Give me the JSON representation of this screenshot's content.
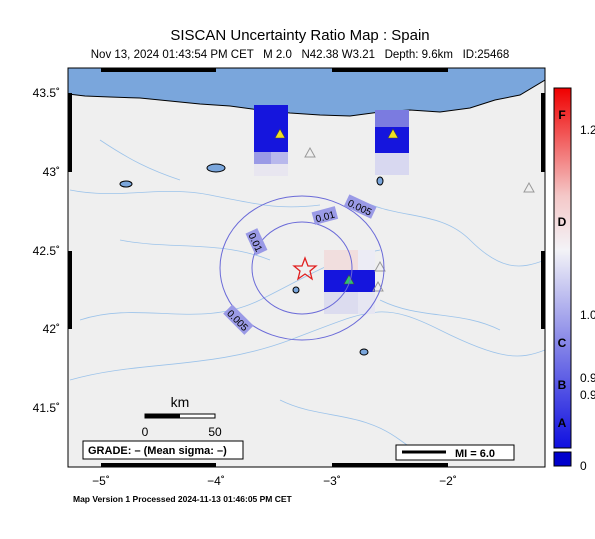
{
  "header": {
    "title": "SISCAN Uncertainty Ratio Map : Spain",
    "subtitle": "Nov 13, 2024 01:43:54 PM CET   M 2.0   N42.38 W3.21   Depth: 9.6km   ID:25468"
  },
  "axes": {
    "lat_labels": [
      "43.5˚",
      "43˚",
      "42.5˚",
      "42˚",
      "41.5˚"
    ],
    "lon_labels": [
      "−5˚",
      "−4˚",
      "−3˚",
      "−2˚"
    ]
  },
  "colorbar": {
    "grades": [
      "F",
      "D",
      "C",
      "B",
      "A"
    ],
    "tick_labels": [
      "1.2",
      "1.0",
      "0.9",
      "0.9",
      "0"
    ]
  },
  "contour_labels": [
    "0.005",
    "0.01",
    "0.01",
    "0.005"
  ],
  "scale_bar": {
    "unit": "km",
    "labels": [
      "0",
      "50"
    ]
  },
  "legend": {
    "grade": "GRADE: – (Mean sigma: –)",
    "mi": "MI = 6.0"
  },
  "footer": "Map Version 1 Processed 2024-11-13 01:46:05 PM CET"
}
